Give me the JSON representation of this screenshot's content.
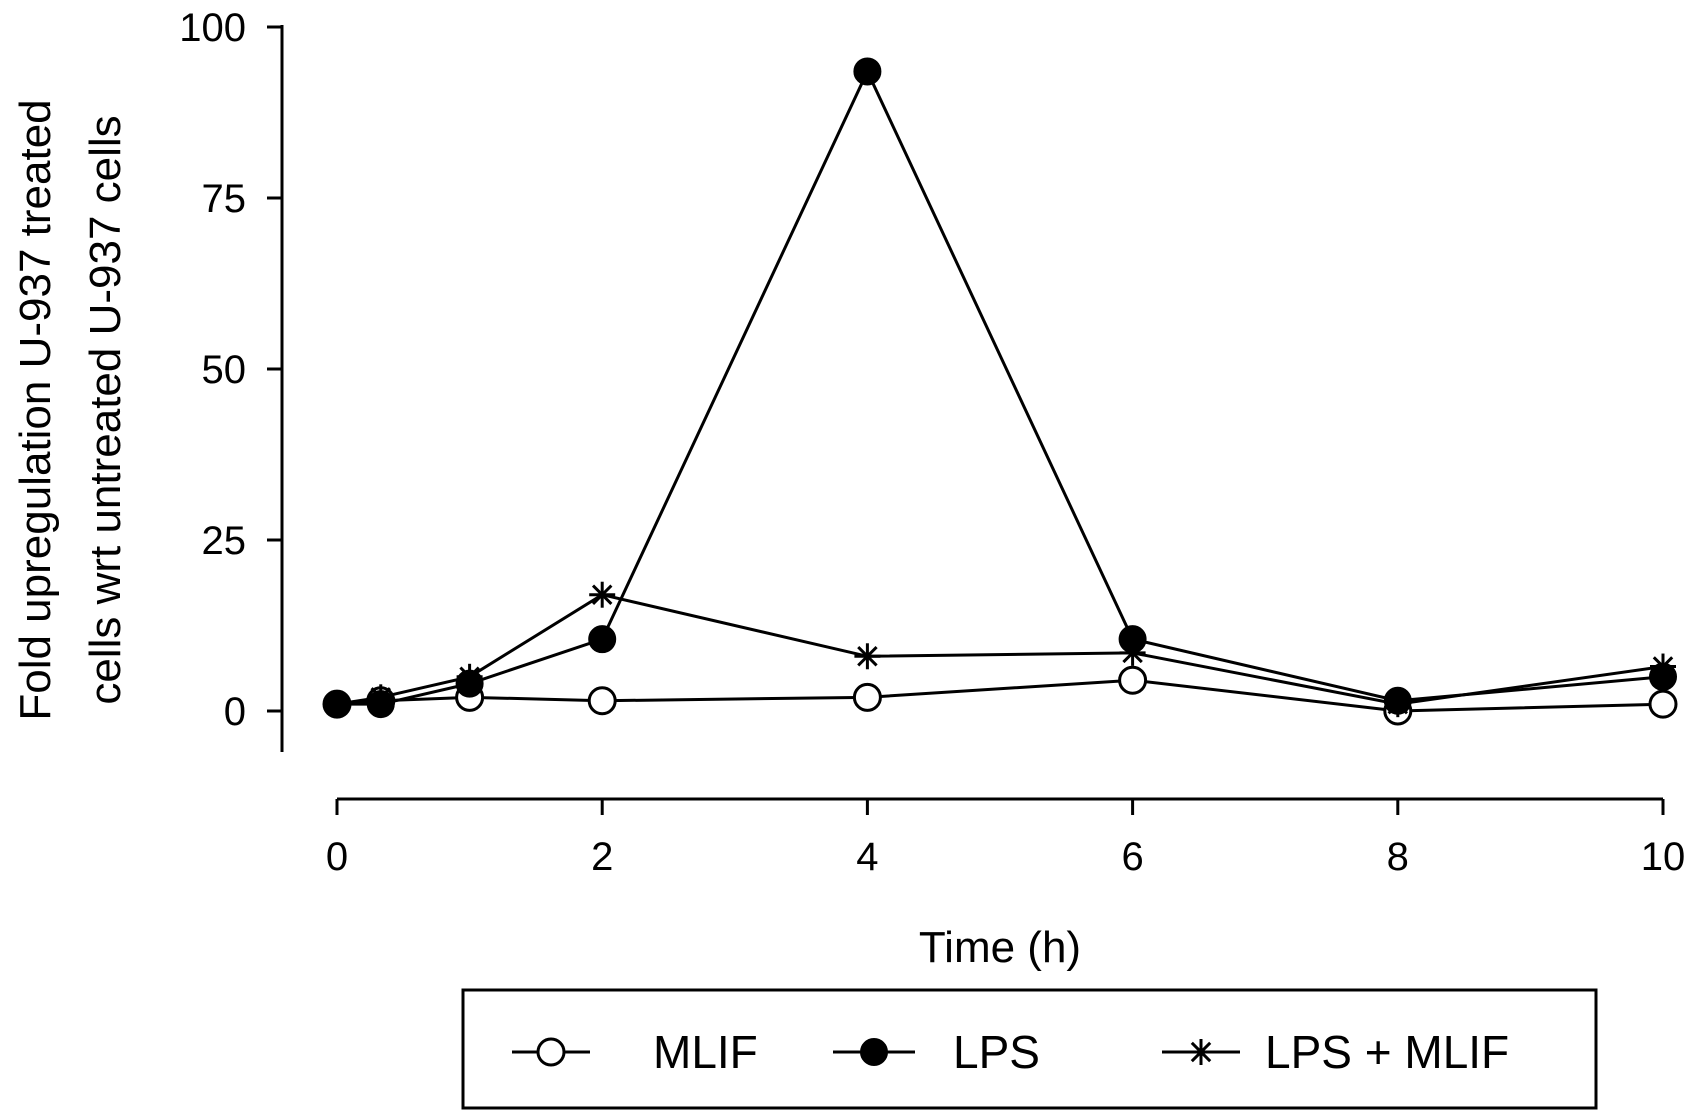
{
  "chart_data": {
    "type": "line",
    "xlabel": "Time (h)",
    "ylabel_lines": [
      "Fold upregulation U-937 treated",
      "cells wrt untreated U-937 cells"
    ],
    "xlim": [
      0,
      10
    ],
    "ylim": [
      0,
      100
    ],
    "x_ticks": [
      0,
      2,
      4,
      6,
      8,
      10
    ],
    "y_ticks": [
      0,
      25,
      50,
      75,
      100
    ],
    "grid": false,
    "legend_position": "bottom",
    "series": [
      {
        "name": "MLIF",
        "marker": "open-circle",
        "x": [
          0,
          0.33,
          1,
          2,
          4,
          6,
          8,
          10
        ],
        "y": [
          1,
          1.5,
          2,
          1.5,
          2,
          4.5,
          0,
          1
        ]
      },
      {
        "name": "LPS",
        "marker": "filled-circle",
        "x": [
          0,
          0.33,
          1,
          2,
          4,
          6,
          8,
          10
        ],
        "y": [
          1,
          1,
          4,
          10.5,
          93.5,
          10.5,
          1.5,
          5
        ]
      },
      {
        "name": "LPS + MLIF",
        "marker": "asterisk",
        "x": [
          0,
          0.33,
          1,
          2,
          4,
          6,
          8,
          10
        ],
        "y": [
          1,
          2,
          5,
          17,
          8,
          8.5,
          1,
          6.5
        ]
      }
    ]
  }
}
